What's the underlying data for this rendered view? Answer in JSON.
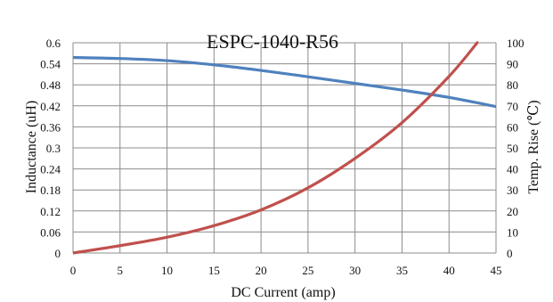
{
  "chart_data": {
    "type": "line",
    "title": "ESPC-1040-R56",
    "xlabel": "DC Current (amp)",
    "ylabel_left": "Inductance (uH)",
    "ylabel_right": "Temp. Rise (℃)",
    "xlim": [
      0,
      45
    ],
    "ylim_left": [
      0,
      0.6
    ],
    "ylim_right": [
      0,
      100
    ],
    "x_ticks": [
      "0",
      "5",
      "10",
      "15",
      "20",
      "25",
      "30",
      "35",
      "40",
      "45"
    ],
    "y_left_ticks": [
      "0",
      "0.06",
      "0.12",
      "0.18",
      "0.24",
      "0.3",
      "0.36",
      "0.42",
      "0.48",
      "0.54",
      "0.6"
    ],
    "y_right_ticks": [
      "0",
      "10",
      "20",
      "30",
      "40",
      "50",
      "60",
      "70",
      "80",
      "90",
      "100"
    ],
    "grid": true,
    "series": [
      {
        "axis": "left",
        "color": "#4f81bd",
        "x": [
          0,
          5,
          10,
          15,
          20,
          25,
          30,
          35,
          40,
          45
        ],
        "values": [
          0.558,
          0.555,
          0.549,
          0.537,
          0.521,
          0.503,
          0.484,
          0.465,
          0.444,
          0.418
        ]
      },
      {
        "axis": "right",
        "color": "#c0504d",
        "x": [
          0,
          5,
          10,
          15,
          20,
          25,
          30,
          35,
          40,
          43
        ],
        "values": [
          0,
          3.5,
          7.5,
          13,
          20.5,
          31,
          45,
          62,
          84,
          100
        ]
      }
    ]
  }
}
